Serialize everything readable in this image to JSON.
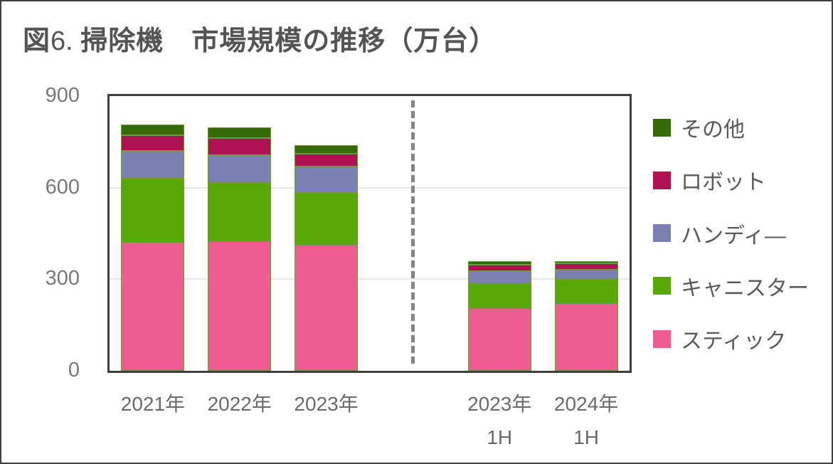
{
  "title": {
    "fig_label": "図",
    "fig_number": "6. ",
    "main": "掃除機　市場規模の推移（万台）"
  },
  "chart_data": {
    "type": "bar",
    "stacked": true,
    "title": "図6. 掃除機　市場規模の推移（万台）",
    "unit": "万台",
    "categories": [
      "2021年",
      "2022年",
      "2023年",
      "2023年",
      "2024年"
    ],
    "category_sublabels": [
      "",
      "",
      "",
      "1H",
      "1H"
    ],
    "series": [
      {
        "key": "stick",
        "name": "スティック",
        "color": "#ee5c92",
        "values": [
          421,
          425,
          412,
          206,
          222
        ]
      },
      {
        "key": "canister",
        "name": "キャニスター",
        "color": "#59a906",
        "values": [
          208,
          190,
          171,
          81,
          78
        ]
      },
      {
        "key": "handy",
        "name": "ハンディ―",
        "color": "#7a80b4",
        "values": [
          92,
          92,
          87,
          39,
          32
        ]
      },
      {
        "key": "robot",
        "name": "ロボット",
        "color": "#b01150",
        "values": [
          51,
          56,
          42,
          22,
          19
        ]
      },
      {
        "key": "other",
        "name": "その他",
        "color": "#346b08",
        "values": [
          36,
          34,
          28,
          12,
          9
        ]
      }
    ],
    "totals": [
      808,
      797,
      740,
      360,
      360
    ],
    "ylim": [
      0,
      900
    ],
    "yticks": [
      0,
      300,
      600,
      900
    ],
    "grid": true,
    "grid_color": "#e7e7e7",
    "axis_border_color": "#3f3f3f",
    "divider_after_category_index": 2,
    "divider_style": "dashed",
    "legend_position": "right",
    "legend_order_top_to_bottom": [
      "その他",
      "ロボット",
      "ハンディ―",
      "キャニスター",
      "スティック"
    ]
  }
}
